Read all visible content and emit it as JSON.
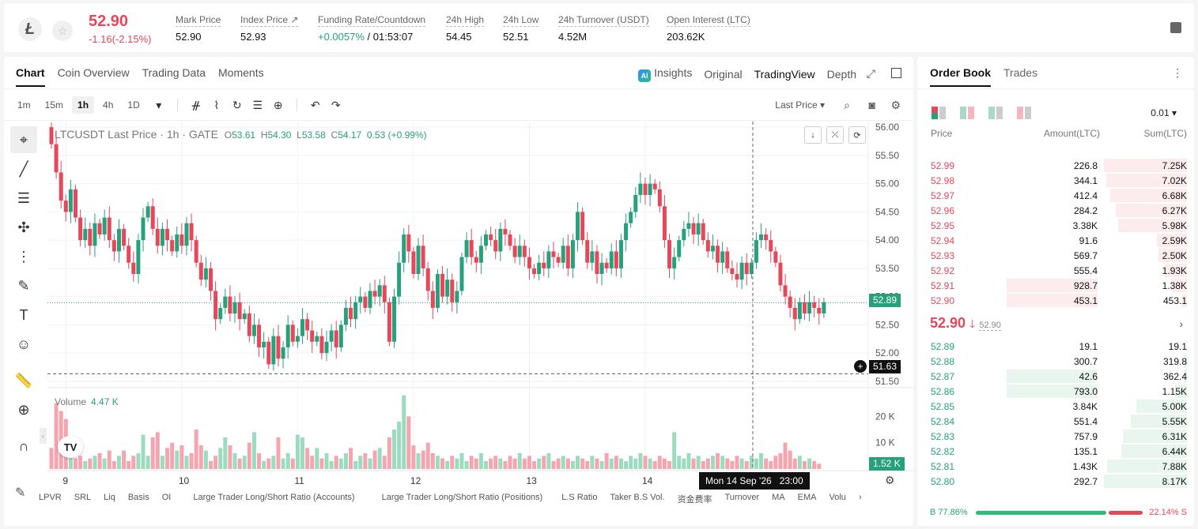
{
  "header": {
    "logo_char": "Ł",
    "star_icon": "☆",
    "last_price": "52.90",
    "change": "-1.16(-2.15%)",
    "stats": [
      {
        "label": "Mark Price",
        "value": "52.90"
      },
      {
        "label": "Index Price ↗",
        "value": "52.93"
      },
      {
        "label": "Funding Rate/Countdown",
        "value": "+0.0057%",
        "value2": "/ 01:53:07"
      },
      {
        "label": "24h High",
        "value": "54.45"
      },
      {
        "label": "24h Low",
        "value": "52.51"
      },
      {
        "label": "24h Turnover (USDT)",
        "value": "4.52M"
      },
      {
        "label": "Open Interest (LTC)",
        "value": "203.62K"
      }
    ]
  },
  "chart_tabs": [
    "Chart",
    "Coin Overview",
    "Trading Data",
    "Moments"
  ],
  "view_tabs": {
    "insights": "Insights",
    "ai_badge": "AI",
    "original": "Original",
    "tradingview": "TradingView",
    "depth": "Depth",
    "expand_icon": "⤢"
  },
  "toolbar": {
    "intervals": [
      "1m",
      "15m",
      "1h",
      "4h",
      "1D"
    ],
    "dropdown": "▾",
    "icons": [
      "ᚌ",
      "⌇",
      "↻",
      "☰",
      "⊕"
    ],
    "undo": "↶",
    "redo": "↷",
    "last_price_select": "Last Price ▾",
    "search": "⌕",
    "camera": "◙",
    "gear": "⚙"
  },
  "drawing_tools": [
    "⌖",
    "╱",
    "☰",
    "✣",
    "⋮",
    "✎",
    "T",
    "☺",
    "📏",
    "⊕",
    "∩"
  ],
  "legend": {
    "symbol": "LTCUSDT Last Price · 1h · GATE",
    "o_key": "O",
    "o": "53.61",
    "h_key": "H",
    "h": "54.30",
    "l_key": "L",
    "l": "53.58",
    "c_key": "C",
    "c": "54.17",
    "chg": "0.53 (+0.99%)"
  },
  "chart_ctrl_icons": [
    "↓",
    "⤫",
    "⟳"
  ],
  "volume_legend": {
    "label": "Volume",
    "value": "4.47 K"
  },
  "tv_logo": "TV",
  "collapse_icon": "‹",
  "crosshair": {
    "date": "Mon 14 Sep '26",
    "time": "23:00"
  },
  "tags": {
    "last": "52.89",
    "cursor": "51.63",
    "vol": "1.52 K",
    "plus": "+"
  },
  "indicators": [
    "LPVR",
    "SRL",
    "Liq",
    "Basis",
    "OI",
    "Large Trader Long/Short Ratio (Accounts)",
    "Large Trader Long/Short Ratio (Positions)",
    "L.S Ratio",
    "Taker B.S Vol.",
    "资金费率",
    "Turnover",
    "MA",
    "EMA",
    "Volu",
    "›"
  ],
  "indicator_edit_icon": "✎",
  "settings_icon": "⚙",
  "chart_data": {
    "type": "candlestick",
    "y_ticks": [
      "56.00",
      "55.50",
      "55.00",
      "54.50",
      "54.00",
      "53.50",
      "53.00",
      "52.50",
      "52.00",
      "51.50"
    ],
    "ylim": [
      51.4,
      56.1
    ],
    "x_ticks": [
      {
        "label": "9",
        "i": 3
      },
      {
        "label": "10",
        "i": 27
      },
      {
        "label": "11",
        "i": 51
      },
      {
        "label": "12",
        "i": 75
      },
      {
        "label": "13",
        "i": 99
      },
      {
        "label": "14",
        "i": 123
      }
    ],
    "vol_ticks": [
      "20 K",
      "10 K"
    ],
    "vol_max": 30,
    "current_price": 52.89,
    "cursor_price": 51.63,
    "closes": [
      55.7,
      55.2,
      54.7,
      54.5,
      54.9,
      54.4,
      54.0,
      54.2,
      53.9,
      54.3,
      54.1,
      54.4,
      54.0,
      53.8,
      54.2,
      53.9,
      53.6,
      53.4,
      54.0,
      54.4,
      54.6,
      54.2,
      53.9,
      54.2,
      54.0,
      53.8,
      54.1,
      53.9,
      54.3,
      54.0,
      53.6,
      53.3,
      53.5,
      53.1,
      52.6,
      52.8,
      53.0,
      52.7,
      52.9,
      52.6,
      52.7,
      52.3,
      52.5,
      52.1,
      52.2,
      51.8,
      52.3,
      51.9,
      52.1,
      52.5,
      52.2,
      52.3,
      52.6,
      52.4,
      52.2,
      52.3,
      52.0,
      52.2,
      52.4,
      52.1,
      52.5,
      52.8,
      52.6,
      52.9,
      53.0,
      52.8,
      53.1,
      53.0,
      53.2,
      52.9,
      52.2,
      53.0,
      53.6,
      54.1,
      53.8,
      53.4,
      53.9,
      53.5,
      53.1,
      52.8,
      53.4,
      53.0,
      53.3,
      52.9,
      53.1,
      53.7,
      54.0,
      53.7,
      53.6,
      53.9,
      54.1,
      54.0,
      53.8,
      54.2,
      54.1,
      53.9,
      53.7,
      53.9,
      53.7,
      53.5,
      53.4,
      53.6,
      53.5,
      53.8,
      53.7,
      53.6,
      53.9,
      53.5,
      54.0,
      54.5,
      54.0,
      53.6,
      53.8,
      53.4,
      53.6,
      53.5,
      53.8,
      53.5,
      54.0,
      54.3,
      54.5,
      54.8,
      55.0,
      54.8,
      55.0,
      54.9,
      54.6,
      54.0,
      53.5,
      53.7,
      54.0,
      54.2,
      54.3,
      54.1,
      54.3,
      54.0,
      53.8,
      53.9,
      53.6,
      53.8,
      53.5,
      53.4,
      53.3,
      53.6,
      53.4,
      53.6,
      54.0,
      54.1,
      54.0,
      53.8,
      53.6,
      53.2,
      53.0,
      52.8,
      52.6,
      52.9,
      52.7,
      52.9,
      52.8,
      52.7,
      52.9
    ],
    "volumes": [
      8,
      25,
      22,
      19,
      6,
      4,
      5,
      3,
      4,
      5,
      6,
      4,
      7,
      3,
      5,
      7,
      3,
      5,
      6,
      13,
      5,
      12,
      14,
      5,
      8,
      10,
      7,
      9,
      5,
      6,
      15,
      9,
      7,
      3,
      5,
      8,
      12,
      9,
      6,
      4,
      5,
      10,
      14,
      6,
      3,
      4,
      5,
      12,
      4,
      6,
      4,
      13,
      12,
      8,
      5,
      8,
      4,
      6,
      3,
      5,
      4,
      6,
      8,
      3,
      5,
      6,
      4,
      7,
      8,
      5,
      12,
      15,
      18,
      28,
      20,
      9,
      6,
      7,
      10,
      6,
      5,
      4,
      3,
      5,
      4,
      6,
      3,
      5,
      4,
      6,
      3,
      4,
      5,
      4,
      3,
      5,
      4,
      6,
      4,
      5,
      3,
      4,
      5,
      6,
      3,
      4,
      5,
      4,
      3,
      5,
      4,
      3,
      5,
      4,
      3,
      6,
      4,
      5,
      4,
      3,
      5,
      4,
      6,
      5,
      4,
      3,
      5,
      4,
      3,
      14,
      5,
      4,
      6,
      4,
      5,
      3,
      4,
      5,
      6,
      5,
      4,
      3,
      5,
      4,
      3,
      5,
      4,
      6,
      4,
      3,
      5,
      6,
      10,
      7,
      4,
      5,
      3,
      4,
      3,
      2
    ]
  },
  "orderbook": {
    "tabs": [
      "Order Book",
      "Trades"
    ],
    "more_icon": "⋮",
    "precision": "0.01 ▾",
    "headers": {
      "price": "Price",
      "amount": "Amount(LTC)",
      "sum": "Sum(LTC)"
    },
    "asks": [
      {
        "price": "52.99",
        "amount": "226.8",
        "sum": "7.25K",
        "depth": 0.0,
        "cum": 1.0
      },
      {
        "price": "52.98",
        "amount": "344.1",
        "sum": "7.02K",
        "depth": 0.0,
        "cum": 0.97
      },
      {
        "price": "52.97",
        "amount": "412.4",
        "sum": "6.68K",
        "depth": 0.0,
        "cum": 0.92
      },
      {
        "price": "52.96",
        "amount": "284.2",
        "sum": "6.27K",
        "depth": 0.0,
        "cum": 0.86
      },
      {
        "price": "52.95",
        "amount": "3.38K",
        "sum": "5.98K",
        "depth": 0.0,
        "cum": 0.83
      },
      {
        "price": "52.94",
        "amount": "91.6",
        "sum": "2.59K",
        "depth": 0.0,
        "cum": 0.36
      },
      {
        "price": "52.93",
        "amount": "569.7",
        "sum": "2.50K",
        "depth": 0.0,
        "cum": 0.34
      },
      {
        "price": "52.92",
        "amount": "555.4",
        "sum": "1.93K",
        "depth": 0.0,
        "cum": 0.27
      },
      {
        "price": "52.91",
        "amount": "928.7",
        "sum": "1.38K",
        "depth": 1.0,
        "cum": 0.19
      },
      {
        "price": "52.90",
        "amount": "453.1",
        "sum": "453.1",
        "depth": 1.0,
        "cum": 0.06
      }
    ],
    "mid": {
      "price": "52.90",
      "arrow": "🡓",
      "mark": "52.90",
      "chevron": "›"
    },
    "bids": [
      {
        "price": "52.89",
        "amount": "19.1",
        "sum": "19.1",
        "depth": 0.0,
        "cum": 0.01
      },
      {
        "price": "52.88",
        "amount": "300.7",
        "sum": "319.8",
        "depth": 0.0,
        "cum": 0.04
      },
      {
        "price": "52.87",
        "amount": "42.6",
        "sum": "362.4",
        "depth": 1.0,
        "cum": 0.04
      },
      {
        "price": "52.86",
        "amount": "793.0",
        "sum": "1.15K",
        "depth": 1.0,
        "cum": 0.14
      },
      {
        "price": "52.85",
        "amount": "3.84K",
        "sum": "5.00K",
        "depth": 0.0,
        "cum": 0.61
      },
      {
        "price": "52.84",
        "amount": "551.4",
        "sum": "5.55K",
        "depth": 0.0,
        "cum": 0.68
      },
      {
        "price": "52.83",
        "amount": "757.9",
        "sum": "6.31K",
        "depth": 0.0,
        "cum": 0.77
      },
      {
        "price": "52.82",
        "amount": "135.1",
        "sum": "6.44K",
        "depth": 0.0,
        "cum": 0.79
      },
      {
        "price": "52.81",
        "amount": "1.43K",
        "sum": "7.88K",
        "depth": 0.0,
        "cum": 0.96
      },
      {
        "price": "52.80",
        "amount": "292.7",
        "sum": "8.17K",
        "depth": 0.0,
        "cum": 1.0
      }
    ],
    "ratio": {
      "buy": "B 77.86%",
      "sell": "22.14% S",
      "buy_fraction": 0.7786
    },
    "colors": {
      "ask": "#e5485a",
      "bid": "#26a17b",
      "ask_bg": "#fdecee",
      "bid_bg": "#e8f6ef"
    }
  }
}
